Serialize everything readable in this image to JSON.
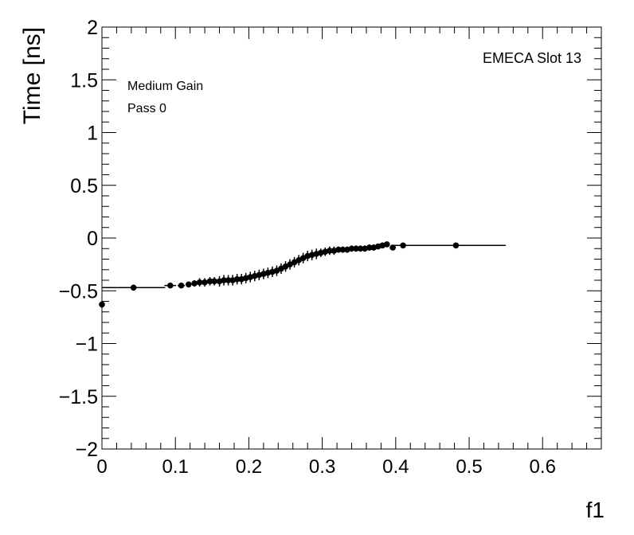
{
  "chart_data": {
    "type": "scatter",
    "xlabel": "f1",
    "ylabel": "Time [ns]",
    "xlim": [
      0,
      0.68
    ],
    "ylim": [
      -2,
      2
    ],
    "x_ticks": [
      "0",
      "0.1",
      "0.2",
      "0.3",
      "0.4",
      "0.5",
      "0.6"
    ],
    "y_ticks": [
      "−2",
      "−1.5",
      "−1",
      "−0.5",
      "0",
      "0.5",
      "1",
      "1.5",
      "2"
    ],
    "annotations": {
      "gain": "Medium Gain",
      "pass": "Pass 0",
      "slot": "EMECA Slot 13"
    },
    "marker_color": "#000000",
    "grid": false,
    "profile": {
      "x": [
        0.0,
        0.043,
        0.093,
        0.108,
        0.118,
        0.126,
        0.133,
        0.14,
        0.147,
        0.153,
        0.16,
        0.166,
        0.172,
        0.178,
        0.184,
        0.19,
        0.196,
        0.202,
        0.208,
        0.214,
        0.22,
        0.226,
        0.232,
        0.238,
        0.244,
        0.25,
        0.256,
        0.262,
        0.268,
        0.274,
        0.28,
        0.286,
        0.292,
        0.298,
        0.304,
        0.31,
        0.316,
        0.322,
        0.328,
        0.334,
        0.34,
        0.346,
        0.352,
        0.358,
        0.364,
        0.37,
        0.376,
        0.382,
        0.388,
        0.396,
        0.41,
        0.482
      ],
      "y": [
        -0.63,
        -0.47,
        -0.45,
        -0.45,
        -0.44,
        -0.43,
        -0.42,
        -0.42,
        -0.41,
        -0.41,
        -0.41,
        -0.4,
        -0.4,
        -0.4,
        -0.39,
        -0.39,
        -0.38,
        -0.37,
        -0.36,
        -0.35,
        -0.34,
        -0.33,
        -0.32,
        -0.31,
        -0.29,
        -0.27,
        -0.25,
        -0.23,
        -0.21,
        -0.19,
        -0.17,
        -0.16,
        -0.15,
        -0.14,
        -0.13,
        -0.12,
        -0.12,
        -0.11,
        -0.11,
        -0.11,
        -0.1,
        -0.1,
        -0.1,
        -0.1,
        -0.09,
        -0.09,
        -0.08,
        -0.07,
        -0.06,
        -0.09,
        -0.07,
        -0.07
      ],
      "xerr": [
        0.0,
        0.043,
        0.008,
        0.005,
        0.004,
        0.003,
        0.003,
        0.003,
        0.003,
        0.003,
        0.003,
        0.003,
        0.003,
        0.003,
        0.003,
        0.003,
        0.003,
        0.003,
        0.003,
        0.003,
        0.003,
        0.003,
        0.003,
        0.003,
        0.003,
        0.003,
        0.003,
        0.003,
        0.003,
        0.003,
        0.003,
        0.003,
        0.003,
        0.003,
        0.003,
        0.003,
        0.003,
        0.003,
        0.003,
        0.003,
        0.003,
        0.003,
        0.003,
        0.003,
        0.003,
        0.003,
        0.003,
        0.003,
        0.003,
        0.004,
        0.012,
        0.068
      ],
      "yerr": [
        0.03,
        0.01,
        0.01,
        0.01,
        0.02,
        0.03,
        0.04,
        0.04,
        0.04,
        0.04,
        0.05,
        0.05,
        0.05,
        0.05,
        0.05,
        0.05,
        0.05,
        0.05,
        0.05,
        0.05,
        0.05,
        0.05,
        0.05,
        0.05,
        0.05,
        0.05,
        0.05,
        0.05,
        0.05,
        0.05,
        0.05,
        0.05,
        0.05,
        0.04,
        0.04,
        0.04,
        0.04,
        0.03,
        0.03,
        0.03,
        0.03,
        0.03,
        0.03,
        0.03,
        0.03,
        0.03,
        0.02,
        0.02,
        0.02,
        0.02,
        0.01,
        0.01
      ]
    }
  }
}
